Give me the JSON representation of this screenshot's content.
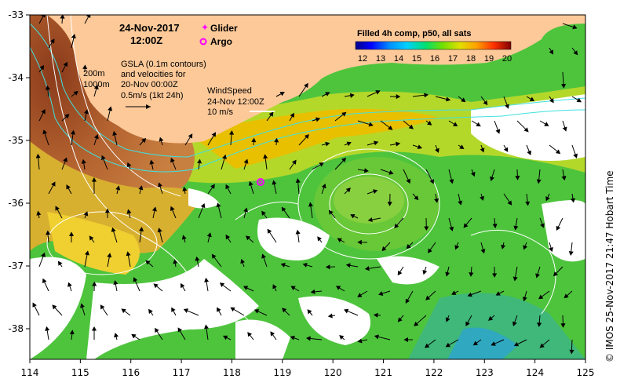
{
  "map": {
    "date": "24-Nov-2017",
    "time": "12:00Z",
    "legend": {
      "glider_label": "Glider",
      "argo_label": "Argo",
      "glider_color": "#ff00ff",
      "argo_color": "#ff00ff"
    },
    "gsla_note": [
      "GSLA (0.1m contours)",
      "and velocities for",
      "20-Nov 00:00Z",
      "0.5m/s (1kt 24h)"
    ],
    "depth_labels": [
      "200m",
      "1000m"
    ],
    "wind_note": [
      "WindSpeed",
      "24-Nov 12:00Z",
      "10 m/s"
    ],
    "colorbar": {
      "title": "Filled 4h comp, p50, all sats",
      "ticks": [
        "12",
        "13",
        "14",
        "15",
        "16",
        "17",
        "18",
        "19",
        "20"
      ],
      "colors": [
        "#00008b",
        "#0000ff",
        "#0090ff",
        "#00d0ff",
        "#00e070",
        "#70e000",
        "#e0e000",
        "#ffa000",
        "#ff3000",
        "#c00000",
        "#800000"
      ]
    },
    "x_ticks": [
      "114",
      "115",
      "116",
      "117",
      "118",
      "119",
      "120",
      "121",
      "122",
      "123",
      "124",
      "125"
    ],
    "y_ticks": [
      "-33",
      "-34",
      "-35",
      "-36",
      "-37",
      "-38"
    ],
    "credit": "© IMOS 25-Nov-2017 21:47 Hobart Time",
    "colors": {
      "land": "#fdc999",
      "shelf_warm": "#a2512a",
      "offshore_green": "#4ec43d",
      "warm_yellow": "#f0c000",
      "contour": "#ffffff",
      "isobath": "#40e0e0"
    }
  }
}
